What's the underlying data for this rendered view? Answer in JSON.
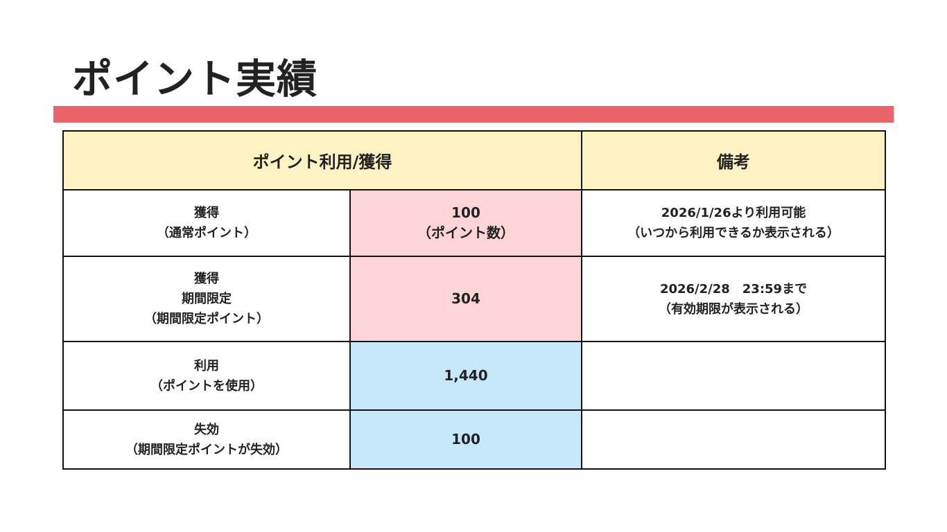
{
  "header": {
    "title": "ポイント実績"
  },
  "table": {
    "columns": [
      "ポイント利用/獲得",
      "備考"
    ],
    "rows": [
      {
        "label": [
          "獲得",
          "（通常ポイント）"
        ],
        "value": [
          "100",
          "（ポイント数）"
        ],
        "note": [
          "2026/1/26より利用可能",
          "（いつから利用できるか表示される）"
        ]
      },
      {
        "label": [
          "獲得",
          "期間限定",
          "（期間限定ポイント）"
        ],
        "value": [
          "304"
        ],
        "note": [
          "2026/2/28　23:59まで",
          "（有効期限が表示される）"
        ]
      },
      {
        "label": [
          "利用",
          "（ポイントを使用）"
        ],
        "value": [
          "1,440"
        ],
        "note": []
      },
      {
        "label": [
          "失効",
          "（期間限定ポイントが失効）"
        ],
        "value": [
          "100"
        ],
        "note": []
      }
    ]
  }
}
